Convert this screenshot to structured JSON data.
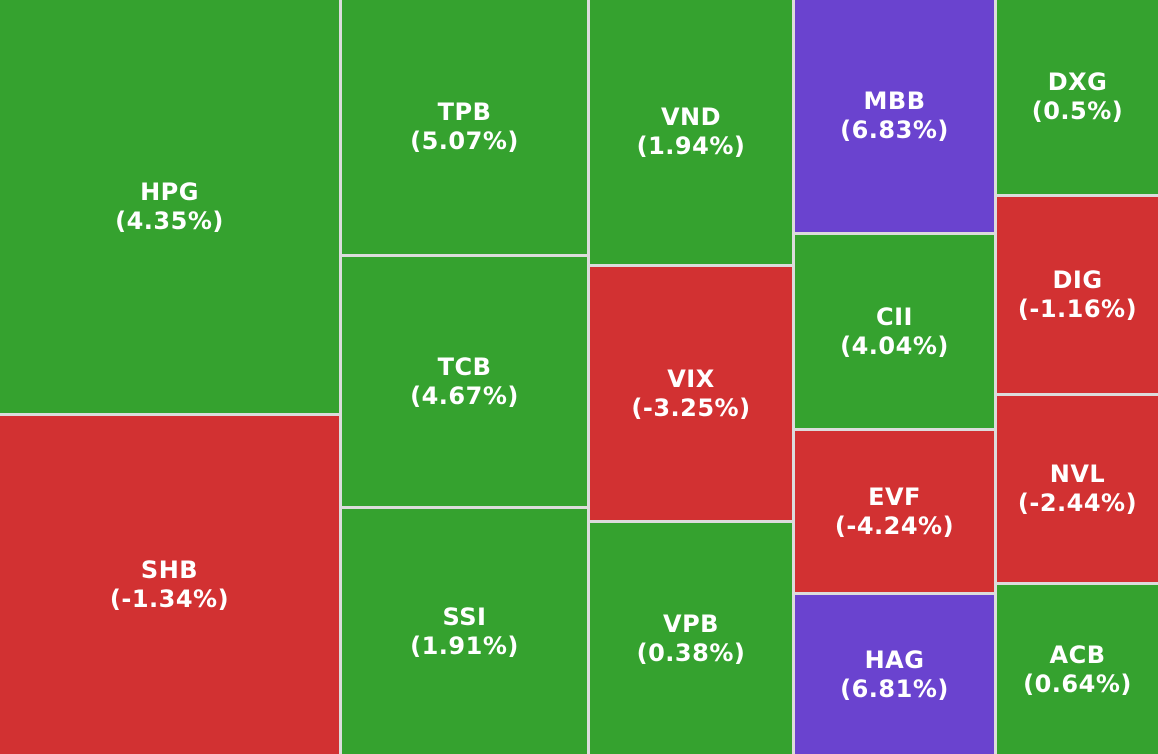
{
  "chart_data": {
    "type": "treemap",
    "colors": {
      "up": "#35a22f",
      "down": "#d23132",
      "ceiling": "#6a43cf"
    },
    "items": [
      {
        "ticker": "HPG",
        "change_pct": 4.35,
        "change_text": "(4.35%)",
        "status": "up"
      },
      {
        "ticker": "SHB",
        "change_pct": -1.34,
        "change_text": "(-1.34%)",
        "status": "down"
      },
      {
        "ticker": "TPB",
        "change_pct": 5.07,
        "change_text": "(5.07%)",
        "status": "up"
      },
      {
        "ticker": "TCB",
        "change_pct": 4.67,
        "change_text": "(4.67%)",
        "status": "up"
      },
      {
        "ticker": "SSI",
        "change_pct": 1.91,
        "change_text": "(1.91%)",
        "status": "up"
      },
      {
        "ticker": "VND",
        "change_pct": 1.94,
        "change_text": "(1.94%)",
        "status": "up"
      },
      {
        "ticker": "VIX",
        "change_pct": -3.25,
        "change_text": "(-3.25%)",
        "status": "down"
      },
      {
        "ticker": "VPB",
        "change_pct": 0.38,
        "change_text": "(0.38%)",
        "status": "up"
      },
      {
        "ticker": "MBB",
        "change_pct": 6.83,
        "change_text": "(6.83%)",
        "status": "ceiling"
      },
      {
        "ticker": "CII",
        "change_pct": 4.04,
        "change_text": "(4.04%)",
        "status": "up"
      },
      {
        "ticker": "EVF",
        "change_pct": -4.24,
        "change_text": "(-4.24%)",
        "status": "down"
      },
      {
        "ticker": "HAG",
        "change_pct": 6.81,
        "change_text": "(6.81%)",
        "status": "ceiling"
      },
      {
        "ticker": "DXG",
        "change_pct": 0.5,
        "change_text": "(0.5%)",
        "status": "up"
      },
      {
        "ticker": "DIG",
        "change_pct": -1.16,
        "change_text": "(-1.16%)",
        "status": "down"
      },
      {
        "ticker": "NVL",
        "change_pct": -2.44,
        "change_text": "(-2.44%)",
        "status": "down"
      },
      {
        "ticker": "ACB",
        "change_pct": 0.64,
        "change_text": "(0.64%)",
        "status": "up"
      }
    ]
  }
}
